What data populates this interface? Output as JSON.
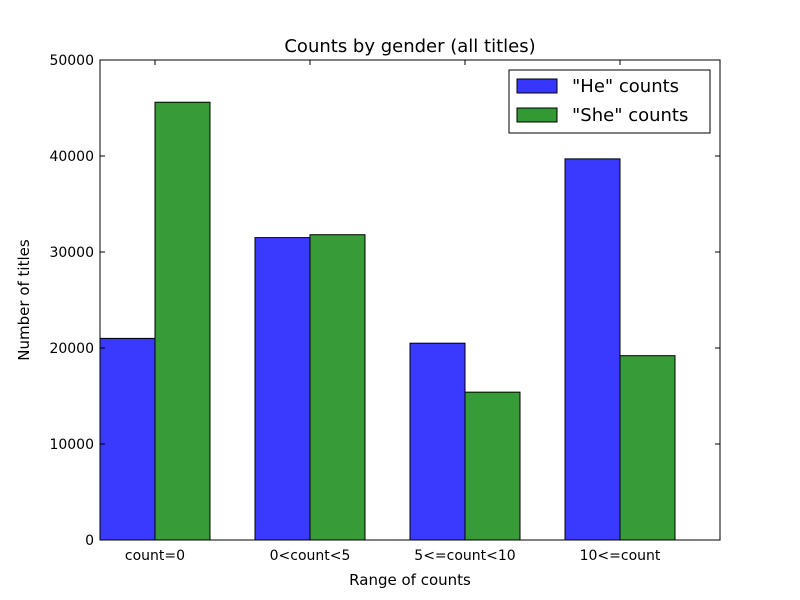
{
  "chart_data": {
    "type": "bar",
    "title": "Counts by gender (all titles)",
    "xlabel": "Range of counts",
    "ylabel": "Number of titles",
    "categories": [
      "count=0",
      "0<count<5",
      "5<=count<10",
      "10<=count"
    ],
    "series": [
      {
        "name": "\"He\" counts",
        "values": [
          21000,
          31500,
          20500,
          39700
        ],
        "color": "#3636FF"
      },
      {
        "name": "\"She\" counts",
        "values": [
          45600,
          31800,
          15400,
          19200
        ],
        "color": "#339933"
      }
    ],
    "ylim": [
      0,
      50000
    ],
    "yticks": [
      "0",
      "10000",
      "20000",
      "30000",
      "40000",
      "50000"
    ],
    "grid": false,
    "legend": "top-right"
  }
}
